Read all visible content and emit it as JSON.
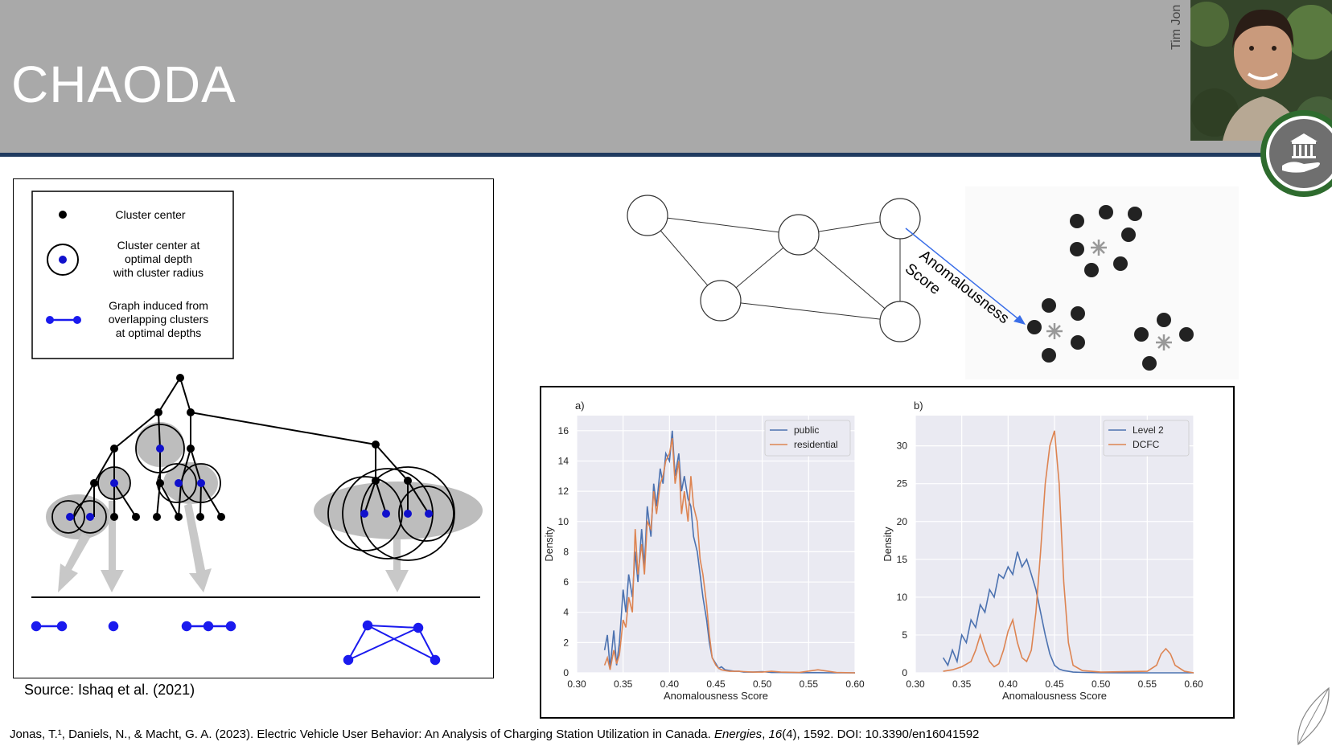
{
  "slide": {
    "title": "CHAODA",
    "presenter_name": "Tim Jon",
    "source": "Source: Ishaq et al. (2021)",
    "citation": {
      "authors": "Jonas, T.¹, Daniels, N., & Macht, G. A. (2023). Electric Vehicle User Behavior: An Analysis of Charging Station Utilization in Canada. ",
      "journal": "Energies",
      "sep1": ", ",
      "volume": "16",
      "issue_rest": "(4), 1592. DOI: 10.3390/en16041592"
    }
  },
  "legend_box": {
    "item1": "Cluster center",
    "item2_l1": "Cluster center at",
    "item2_l2": "optimal depth",
    "item2_l3": "with cluster radius",
    "item3_l1": "Graph induced from",
    "item3_l2": "overlapping clusters",
    "item3_l3": "at optimal depths"
  },
  "top_diagram": {
    "arrow_label_1": "Anomalousness",
    "arrow_label_2": "Score"
  },
  "colors": {
    "header_bg": "#a9a9a9",
    "rule": "#1f3a5f",
    "blue_series": "#4c72b0",
    "orange_series": "#dd8452",
    "plot_bg": "#eaeaf2",
    "node_blue": "#1010cc"
  },
  "chart_data": [
    {
      "type": "line",
      "panel_label": "a)",
      "xlabel": "Anomalousness Score",
      "ylabel": "Density",
      "xlim": [
        0.3,
        0.6
      ],
      "ylim": [
        0,
        17
      ],
      "xticks": [
        "0.30",
        "0.35",
        "0.40",
        "0.45",
        "0.50",
        "0.55",
        "0.60"
      ],
      "yticks": [
        "0",
        "2",
        "4",
        "6",
        "8",
        "10",
        "12",
        "14",
        "16"
      ],
      "legend_position": "top-right",
      "series": [
        {
          "name": "public",
          "color": "#4c72b0",
          "x": [
            0.33,
            0.333,
            0.336,
            0.34,
            0.343,
            0.346,
            0.35,
            0.353,
            0.356,
            0.36,
            0.363,
            0.366,
            0.37,
            0.373,
            0.376,
            0.38,
            0.383,
            0.386,
            0.39,
            0.393,
            0.396,
            0.4,
            0.403,
            0.406,
            0.41,
            0.413,
            0.416,
            0.42,
            0.423,
            0.426,
            0.43,
            0.433,
            0.436,
            0.44,
            0.443,
            0.446,
            0.45,
            0.453,
            0.456,
            0.46,
            0.465,
            0.47,
            0.475,
            0.48,
            0.49,
            0.5,
            0.51,
            0.52,
            0.54,
            0.56,
            0.58,
            0.6
          ],
          "y": [
            1.5,
            2.5,
            0.3,
            2.8,
            0.5,
            2.0,
            5.5,
            4.0,
            6.5,
            5.0,
            8.0,
            6.0,
            9.5,
            7.0,
            11.0,
            9.0,
            12.5,
            11.0,
            13.5,
            12.5,
            14.5,
            14.0,
            16.0,
            13.0,
            14.5,
            12.0,
            13.0,
            11.5,
            11.0,
            9.0,
            8.0,
            6.5,
            5.0,
            3.5,
            2.0,
            1.0,
            0.6,
            0.3,
            0.4,
            0.2,
            0.15,
            0.1,
            0.1,
            0.05,
            0.05,
            0.08,
            0.02,
            0.02,
            0.01,
            0.01,
            0.0,
            0.0
          ]
        },
        {
          "name": "residential",
          "color": "#dd8452",
          "x": [
            0.33,
            0.333,
            0.336,
            0.34,
            0.343,
            0.346,
            0.35,
            0.353,
            0.356,
            0.36,
            0.363,
            0.366,
            0.37,
            0.373,
            0.376,
            0.38,
            0.383,
            0.386,
            0.39,
            0.393,
            0.396,
            0.4,
            0.403,
            0.406,
            0.41,
            0.413,
            0.416,
            0.42,
            0.423,
            0.426,
            0.43,
            0.433,
            0.436,
            0.44,
            0.443,
            0.446,
            0.45,
            0.453,
            0.456,
            0.46,
            0.465,
            0.47,
            0.475,
            0.48,
            0.49,
            0.5,
            0.51,
            0.52,
            0.54,
            0.56,
            0.58,
            0.6
          ],
          "y": [
            0.5,
            1.0,
            0.2,
            1.5,
            0.6,
            1.2,
            3.5,
            3.0,
            5.0,
            4.0,
            9.5,
            6.5,
            8.5,
            6.5,
            10.0,
            9.5,
            12.0,
            10.5,
            12.5,
            13.0,
            14.0,
            14.5,
            15.5,
            12.5,
            14.0,
            10.5,
            12.0,
            10.0,
            13.0,
            11.0,
            10.0,
            7.5,
            6.5,
            4.5,
            2.5,
            1.0,
            0.5,
            0.3,
            0.2,
            0.15,
            0.1,
            0.1,
            0.1,
            0.08,
            0.05,
            0.05,
            0.1,
            0.05,
            0.02,
            0.2,
            0.02,
            0.0
          ]
        }
      ]
    },
    {
      "type": "line",
      "panel_label": "b)",
      "xlabel": "Anomalousness Score",
      "ylabel": "Density",
      "xlim": [
        0.3,
        0.6
      ],
      "ylim": [
        0,
        34
      ],
      "xticks": [
        "0.30",
        "0.35",
        "0.40",
        "0.45",
        "0.50",
        "0.55",
        "0.60"
      ],
      "yticks": [
        "0",
        "5",
        "10",
        "15",
        "20",
        "25",
        "30"
      ],
      "legend_position": "top-right",
      "series": [
        {
          "name": "Level 2",
          "color": "#4c72b0",
          "x": [
            0.33,
            0.335,
            0.34,
            0.345,
            0.35,
            0.355,
            0.36,
            0.365,
            0.37,
            0.375,
            0.38,
            0.385,
            0.39,
            0.395,
            0.4,
            0.405,
            0.41,
            0.415,
            0.42,
            0.425,
            0.43,
            0.435,
            0.44,
            0.445,
            0.45,
            0.455,
            0.46,
            0.465,
            0.47,
            0.48,
            0.5,
            0.55,
            0.6
          ],
          "y": [
            2.0,
            1.0,
            3.0,
            1.5,
            5.0,
            4.0,
            7.0,
            6.0,
            9.0,
            8.0,
            11.0,
            10.0,
            13.0,
            12.5,
            14.0,
            13.0,
            16.0,
            14.0,
            15.0,
            13.0,
            11.0,
            8.0,
            5.0,
            2.5,
            1.0,
            0.5,
            0.3,
            0.2,
            0.1,
            0.05,
            0.02,
            0.0,
            0.0
          ]
        },
        {
          "name": "DCFC",
          "color": "#dd8452",
          "x": [
            0.33,
            0.34,
            0.35,
            0.36,
            0.365,
            0.37,
            0.375,
            0.38,
            0.385,
            0.39,
            0.395,
            0.4,
            0.405,
            0.41,
            0.415,
            0.42,
            0.425,
            0.43,
            0.435,
            0.44,
            0.445,
            0.45,
            0.455,
            0.46,
            0.465,
            0.47,
            0.48,
            0.5,
            0.55,
            0.56,
            0.565,
            0.57,
            0.575,
            0.58,
            0.59,
            0.6
          ],
          "y": [
            0.2,
            0.4,
            0.8,
            1.5,
            3.0,
            5.0,
            3.0,
            1.5,
            0.8,
            1.2,
            3.0,
            5.5,
            7.0,
            4.0,
            2.0,
            1.5,
            3.0,
            8.0,
            16.0,
            25.0,
            30.0,
            32.0,
            25.0,
            12.0,
            4.0,
            1.0,
            0.3,
            0.1,
            0.2,
            1.0,
            2.5,
            3.2,
            2.5,
            1.0,
            0.2,
            0.0
          ]
        }
      ]
    }
  ]
}
